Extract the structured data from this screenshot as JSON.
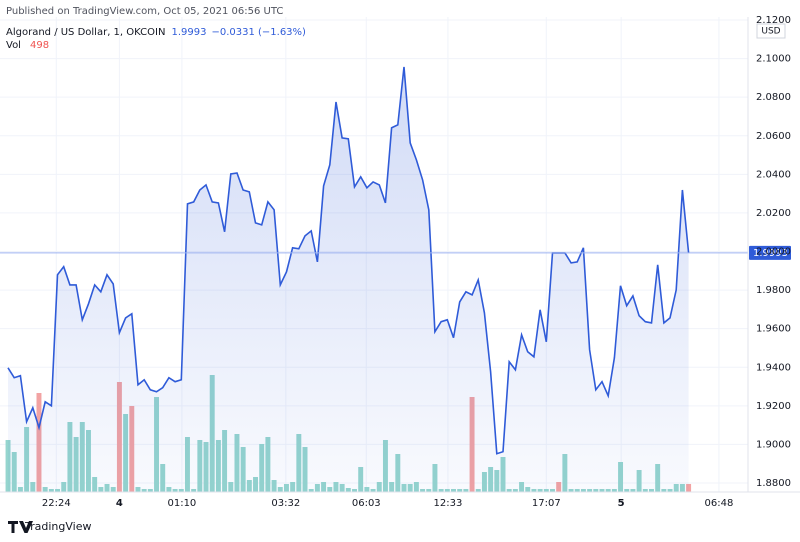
{
  "header": "Published on TradingView.com, Oct 05, 2021 06:56 UTC",
  "footer": "TradingView",
  "chart_data": {
    "type": "area",
    "title": "Algorand / US Dollar, 1, OKCOIN",
    "change": "−0.0331 (−1.63%)",
    "currency": "USD",
    "xlim": [
      -1.3,
      119.6
    ],
    "xticks": [
      {
        "value": 7.8,
        "label": "22:24"
      },
      {
        "value": 18,
        "label": "4"
      },
      {
        "value": 28.1,
        "label": "01:10"
      },
      {
        "value": 44.9,
        "label": "03:32"
      },
      {
        "value": 57.9,
        "label": "06:03"
      },
      {
        "value": 71.1,
        "label": "12:33"
      },
      {
        "value": 87,
        "label": "17:07"
      },
      {
        "value": 99.1,
        "label": "5"
      },
      {
        "value": 114.9,
        "label": "06:48"
      }
    ],
    "ylim": [
      1.88,
      2.12
    ],
    "yticks": [
      {
        "value": 1.88,
        "label": "1.8800"
      },
      {
        "value": 1.9,
        "label": "1.9000"
      },
      {
        "value": 1.92,
        "label": "1.9200"
      },
      {
        "value": 1.94,
        "label": "1.9400"
      },
      {
        "value": 1.96,
        "label": "1.9600"
      },
      {
        "value": 1.98,
        "label": "1.9800"
      },
      {
        "value": 2.0,
        "label": "2.0000"
      },
      {
        "value": 2.02,
        "label": "2.0200"
      },
      {
        "value": 2.04,
        "label": "2.0400"
      },
      {
        "value": 2.06,
        "label": "2.0600"
      },
      {
        "value": 2.08,
        "label": "2.0800"
      },
      {
        "value": 2.1,
        "label": "2.1000"
      },
      {
        "value": 2.12,
        "label": "2.1200"
      }
    ],
    "grid": true,
    "series": [
      {
        "name": "Algorand / US Dollar",
        "color": "#2f5bd8",
        "values": [
          1.9397,
          1.9346,
          1.9356,
          1.9118,
          1.919,
          1.9087,
          1.9221,
          1.92,
          1.9879,
          1.9921,
          1.9827,
          1.9827,
          1.9646,
          1.9729,
          1.9827,
          1.9791,
          1.9879,
          1.9832,
          1.9579,
          1.9656,
          1.9677,
          1.9309,
          1.9335,
          1.9283,
          1.9273,
          1.9294,
          1.9346,
          1.9325,
          1.9335,
          2.0247,
          2.0257,
          2.0319,
          2.0345,
          2.0257,
          2.0252,
          2.0102,
          2.0402,
          2.0407,
          2.0319,
          2.0309,
          2.0148,
          2.0138,
          2.0257,
          2.0216,
          1.9827,
          1.9895,
          2.0019,
          2.0014,
          2.0081,
          2.0107,
          1.9946,
          2.034,
          2.0449,
          2.0775,
          2.0589,
          2.0584,
          2.0335,
          2.0387,
          2.033,
          2.0361,
          2.0345,
          2.0252,
          2.0641,
          2.0656,
          2.0957,
          2.0563,
          2.0475,
          2.0371,
          2.0216,
          1.9584,
          1.9636,
          1.9646,
          1.9553,
          1.9739,
          1.9791,
          1.9775,
          1.9853,
          1.9682,
          1.9377,
          1.8952,
          1.8962,
          1.9428,
          1.9387,
          1.9568,
          1.948,
          1.9454,
          1.9698,
          1.9532,
          1.9993,
          1.9993,
          1.9993,
          1.9941,
          1.9946,
          2.0019,
          1.9491,
          1.9283,
          1.9325,
          1.9252,
          1.9449,
          1.9822,
          1.9719,
          1.977,
          1.9667,
          1.9636,
          1.963,
          1.9931,
          1.963,
          1.9656,
          1.9801,
          2.0319,
          1.9993
        ]
      }
    ],
    "volume": {
      "name": "Vol",
      "up_color": "#95d5ce",
      "down_color": "#f2a3a3",
      "down": [
        5,
        18,
        20,
        75,
        89,
        110
      ],
      "values": [
        3224,
        2480,
        310,
        4030,
        620,
        6138,
        310,
        186,
        186,
        620,
        4340,
        3410,
        4340,
        3844,
        930,
        310,
        496,
        310,
        6820,
        4836,
        5332,
        310,
        186,
        186,
        5890,
        1736,
        310,
        186,
        186,
        3410,
        186,
        3224,
        3100,
        7254,
        3224,
        3844,
        620,
        3596,
        2790,
        744,
        930,
        2976,
        3410,
        744,
        310,
        496,
        620,
        3596,
        2790,
        186,
        496,
        620,
        310,
        620,
        496,
        248,
        186,
        1550,
        310,
        186,
        620,
        3224,
        620,
        2356,
        496,
        496,
        620,
        186,
        186,
        1736,
        186,
        186,
        186,
        186,
        186,
        5890,
        186,
        1240,
        1550,
        1364,
        2170,
        186,
        186,
        620,
        310,
        186,
        186,
        186,
        186,
        620,
        2356,
        186,
        186,
        186,
        186,
        186,
        186,
        186,
        186,
        1860,
        186,
        186,
        1364,
        186,
        186,
        1736,
        186,
        186,
        496,
        496,
        498
      ]
    }
  }
}
